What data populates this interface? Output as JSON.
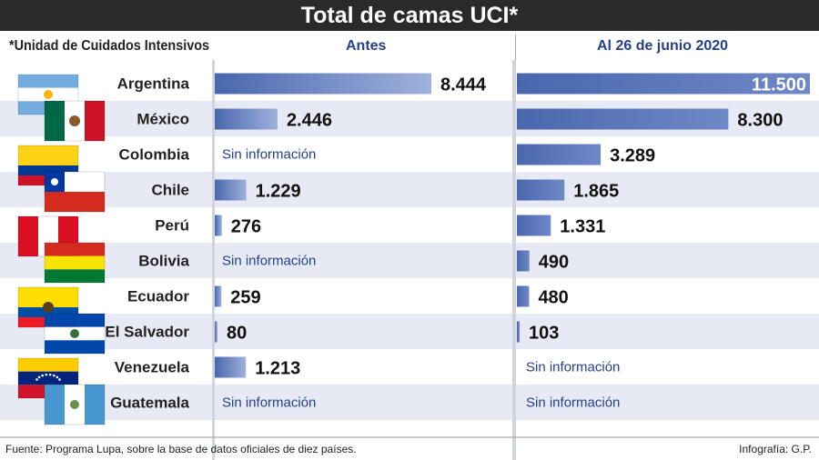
{
  "title": "Total de camas UCI*",
  "note": "*Unidad de Cuidados Intensivos",
  "columns": {
    "before": "Antes",
    "after": "Al 26 de junio 2020"
  },
  "no_info_label": "Sin información",
  "footer": {
    "source": "Fuente: Programa Lupa, sobre la base de datos oficiales de diez países.",
    "credit": "Infografía: G.P."
  },
  "colors": {
    "bar": "#4a67ae",
    "bar_light": "#9fb1dc",
    "row_stripe": "#e7eaf4",
    "title_bg": "#2a2a2a",
    "accent_text": "#24408f"
  },
  "chart_data": {
    "type": "bar",
    "title": "Total de camas UCI*",
    "categories": [
      "Argentina",
      "México",
      "Colombia",
      "Chile",
      "Perú",
      "Bolivia",
      "Ecuador",
      "El Salvador",
      "Venezuela",
      "Guatemala"
    ],
    "series": [
      {
        "name": "Antes",
        "values": [
          8444,
          2446,
          null,
          1229,
          276,
          null,
          259,
          80,
          1213,
          null
        ],
        "labels": [
          "8.444",
          "2.446",
          "Sin información",
          "1.229",
          "276",
          "Sin información",
          "259",
          "80",
          "1.213",
          "Sin información"
        ]
      },
      {
        "name": "Al 26 de junio 2020",
        "values": [
          11500,
          8300,
          3289,
          1865,
          1331,
          490,
          480,
          103,
          null,
          null
        ],
        "labels": [
          "11.500",
          "8.300",
          "3.289",
          "1.865",
          "1.331",
          "490",
          "480",
          "103",
          "Sin información",
          "Sin información"
        ]
      }
    ],
    "flags": [
      "argentina-flag-icon",
      "mexico-flag-icon",
      "colombia-flag-icon",
      "chile-flag-icon",
      "peru-flag-icon",
      "bolivia-flag-icon",
      "ecuador-flag-icon",
      "el-salvador-flag-icon",
      "venezuela-flag-icon",
      "guatemala-flag-icon"
    ],
    "grid": false,
    "legend": "none"
  }
}
